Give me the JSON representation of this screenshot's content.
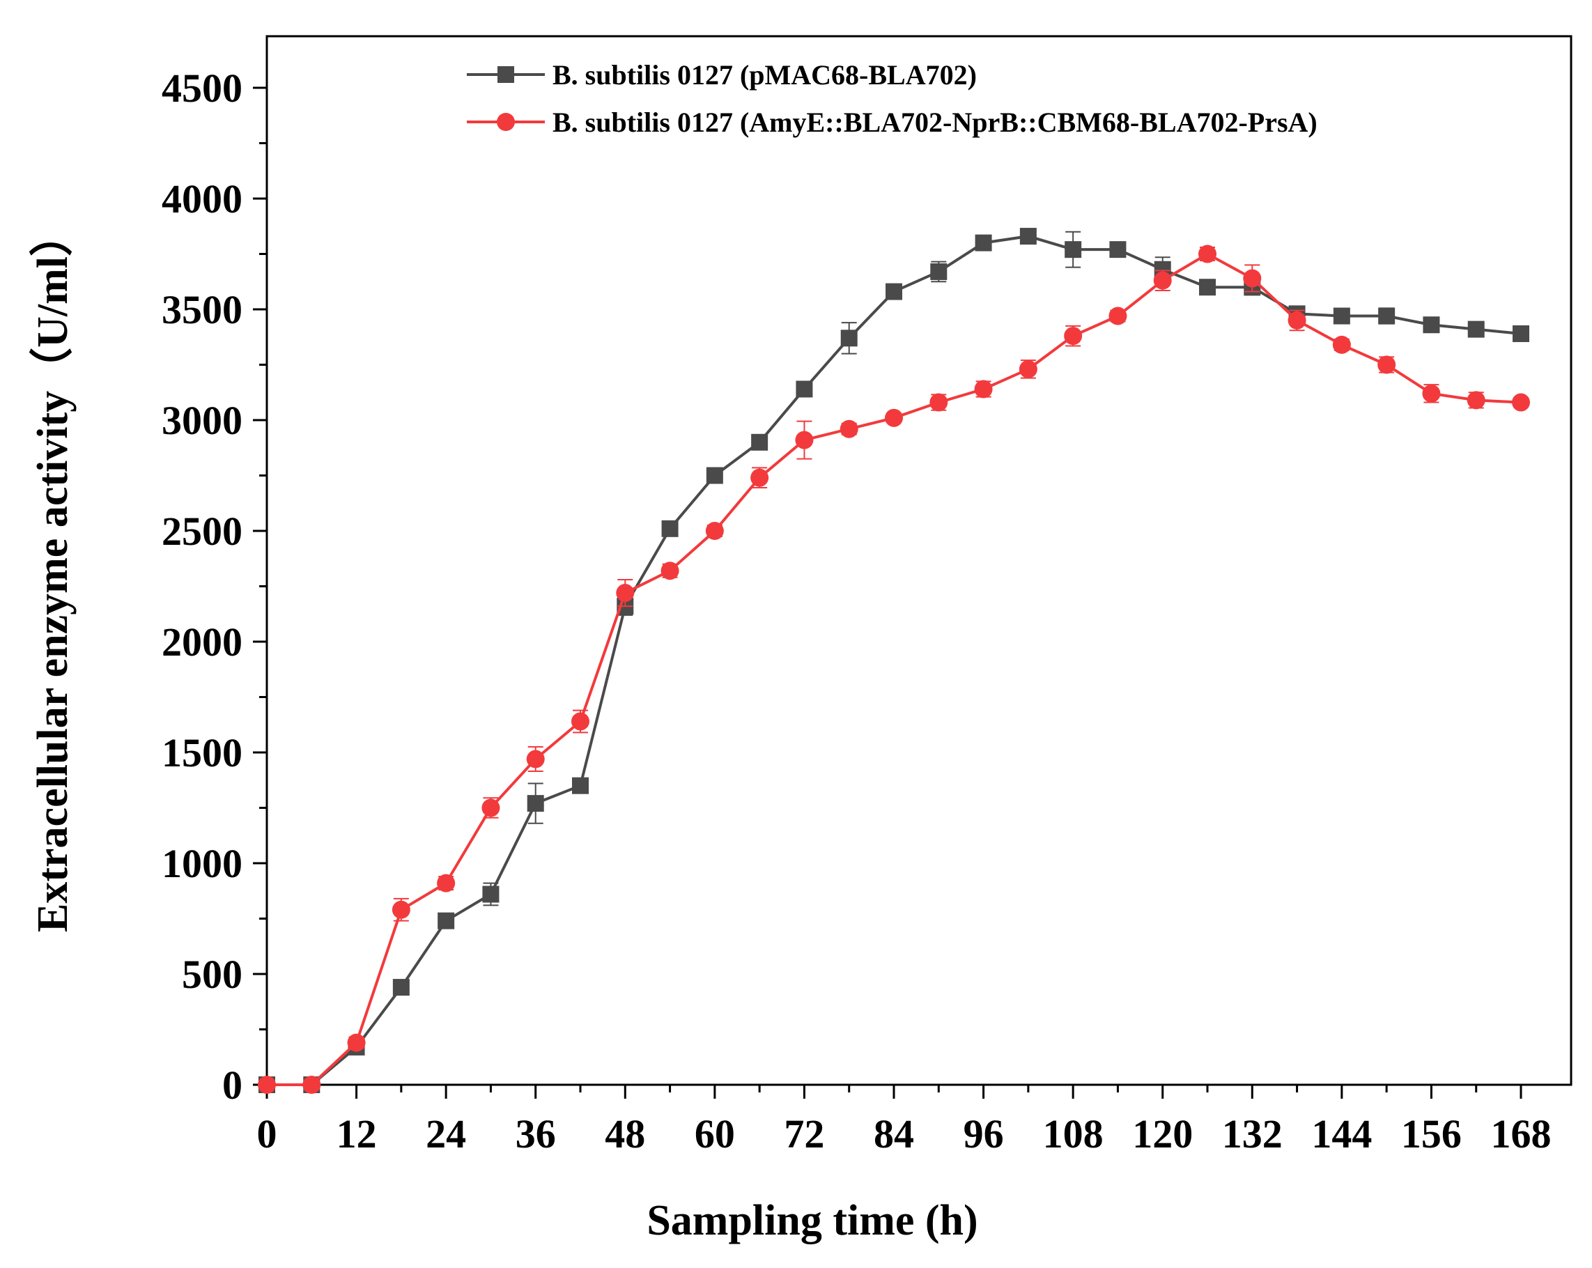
{
  "chart_data": {
    "type": "line",
    "title": "",
    "xlabel": "Sampling time (h)",
    "ylabel": "Extracellular enzyme activity（U/ml）",
    "xlim": [
      0,
      171
    ],
    "ylim": [
      0,
      4750
    ],
    "xticks": [
      0,
      12,
      24,
      36,
      48,
      60,
      72,
      84,
      96,
      108,
      120,
      132,
      144,
      156,
      168
    ],
    "yticks": [
      0,
      500,
      1000,
      1500,
      2000,
      2500,
      3000,
      3500,
      4000,
      4500
    ],
    "legend_position": "top",
    "grid": false,
    "x": [
      0,
      6,
      12,
      18,
      24,
      30,
      36,
      42,
      48,
      54,
      60,
      66,
      72,
      78,
      84,
      90,
      96,
      102,
      108,
      114,
      120,
      126,
      132,
      138,
      144,
      150,
      156,
      162,
      168
    ],
    "series": [
      {
        "name": "B. subtilis 0127 (pMAC68-BLA702)",
        "color": "#4a4a4a",
        "marker": "square",
        "values": [
          0,
          0,
          170,
          440,
          740,
          860,
          1270,
          1350,
          2160,
          2510,
          2750,
          2900,
          3140,
          3370,
          3580,
          3670,
          3800,
          3830,
          3770,
          3770,
          3680,
          3600,
          3600,
          3480,
          3470,
          3470,
          3430,
          3410,
          3390
        ],
        "errors": [
          0,
          0,
          20,
          25,
          25,
          50,
          90,
          25,
          40,
          25,
          20,
          25,
          20,
          70,
          20,
          45,
          15,
          30,
          80,
          20,
          55,
          20,
          35,
          25,
          20,
          35,
          20,
          30,
          25
        ]
      },
      {
        "name": "B. subtilis 0127 (AmyE::BLA702-NprB::CBM68-BLA702-PrsA)",
        "color": "#f23a3c",
        "marker": "circle",
        "values": [
          0,
          0,
          190,
          790,
          910,
          1250,
          1470,
          1640,
          2220,
          2320,
          2500,
          2740,
          2910,
          2960,
          3010,
          3080,
          3140,
          3230,
          3380,
          3470,
          3630,
          3750,
          3640,
          3450,
          3340,
          3250,
          3120,
          3090,
          3080
        ],
        "errors": [
          0,
          0,
          25,
          50,
          30,
          45,
          55,
          50,
          60,
          30,
          25,
          45,
          85,
          25,
          20,
          35,
          35,
          40,
          45,
          25,
          45,
          30,
          60,
          45,
          25,
          35,
          40,
          35,
          20
        ]
      }
    ]
  }
}
